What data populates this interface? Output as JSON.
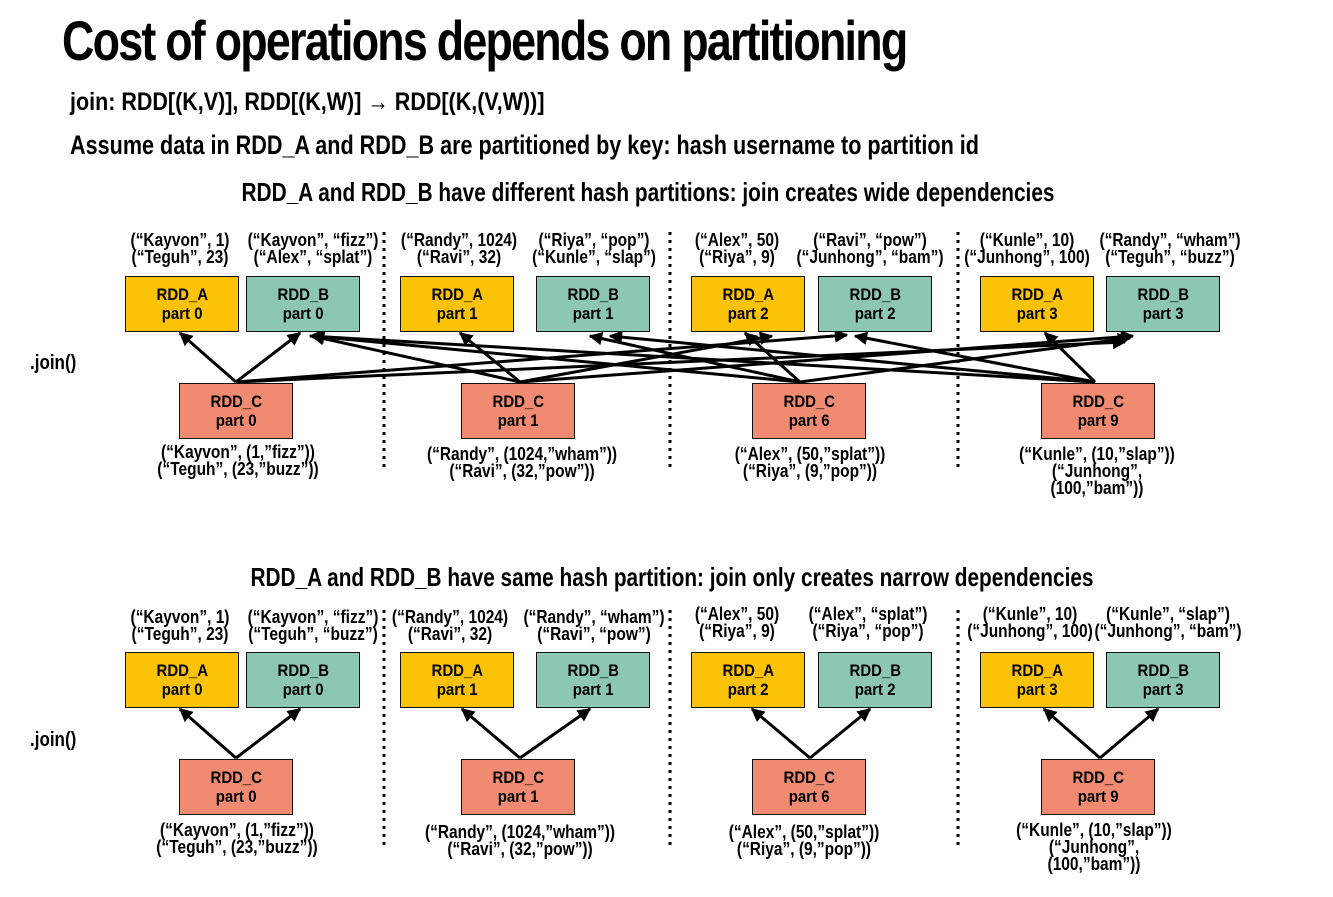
{
  "title": "Cost of operations depends on partitioning",
  "join_signature": "join:  RDD[(K,V)], RDD[(K,W)] → RDD[(K,(V,W))]",
  "assumption": "Assume data in RDD_A and RDD_B are partitioned by key: hash username to partition id",
  "top": {
    "heading": "RDD_A and RDD_B have different hash partitions: join creates wide dependencies",
    "join_label": ".join()",
    "groups": [
      {
        "a": {
          "name": "RDD_A",
          "part": "part 0",
          "data": "(“Kayvon”, 1)\n(“Teguh”, 23)"
        },
        "b": {
          "name": "RDD_B",
          "part": "part 0",
          "data": "(“Kayvon”, “fizz”)\n(“Alex”, “splat”)"
        },
        "c": {
          "name": "RDD_C",
          "part": "part 0",
          "data": "(“Kayvon”, (1,”fizz”))\n(“Teguh”, (23,”buzz”))"
        }
      },
      {
        "a": {
          "name": "RDD_A",
          "part": "part 1",
          "data": "(“Randy”, 1024)\n(“Ravi”, 32)"
        },
        "b": {
          "name": "RDD_B",
          "part": "part 1",
          "data": "(“Riya”, “pop”)\n(“Kunle”, “slap”)"
        },
        "c": {
          "name": "RDD_C",
          "part": "part 1",
          "data": "(“Randy”, (1024,”wham”))\n(“Ravi”, (32,”pow”))"
        }
      },
      {
        "a": {
          "name": "RDD_A",
          "part": "part 2",
          "data": "(“Alex”, 50)\n(“Riya”, 9)"
        },
        "b": {
          "name": "RDD_B",
          "part": "part 2",
          "data": "(“Ravi”, “pow”)\n(“Junhong”, “bam”)"
        },
        "c": {
          "name": "RDD_C",
          "part": "part 6",
          "data": "(“Alex”, (50,”splat”))\n(“Riya”, (9,”pop”))"
        }
      },
      {
        "a": {
          "name": "RDD_A",
          "part": "part 3",
          "data": "(“Kunle”, 10)\n(“Junhong”, 100)"
        },
        "b": {
          "name": "RDD_B",
          "part": "part 3",
          "data": "(“Randy”, “wham”)\n(“Teguh”, “buzz”)"
        },
        "c": {
          "name": "RDD_C",
          "part": "part 9",
          "data": "(“Kunle”, (10,”slap”))\n(“Junhong”,\n(100,”bam”))"
        }
      }
    ]
  },
  "bottom": {
    "heading": "RDD_A and RDD_B have same hash partition: join only creates narrow dependencies",
    "join_label": ".join()",
    "groups": [
      {
        "a": {
          "name": "RDD_A",
          "part": "part 0",
          "data": "(“Kayvon”, 1)\n(“Teguh”, 23)"
        },
        "b": {
          "name": "RDD_B",
          "part": "part 0",
          "data": "(“Kayvon”, “fizz”)\n(“Teguh”, “buzz”)"
        },
        "c": {
          "name": "RDD_C",
          "part": "part 0",
          "data": "(“Kayvon”, (1,”fizz”))\n(“Teguh”, (23,”buzz”))"
        }
      },
      {
        "a": {
          "name": "RDD_A",
          "part": "part 1",
          "data": "(“Randy”, 1024)\n(“Ravi”, 32)"
        },
        "b": {
          "name": "RDD_B",
          "part": "part 1",
          "data": "(“Randy”, “wham”)\n(“Ravi”, “pow”)"
        },
        "c": {
          "name": "RDD_C",
          "part": "part 1",
          "data": "(“Randy”, (1024,”wham”))\n(“Ravi”, (32,”pow”))"
        }
      },
      {
        "a": {
          "name": "RDD_A",
          "part": "part 2",
          "data": "(“Alex”, 50)\n(“Riya”, 9)"
        },
        "b": {
          "name": "RDD_B",
          "part": "part 2",
          "data": "(“Alex”, “splat”)\n(“Riya”, “pop”)"
        },
        "c": {
          "name": "RDD_C",
          "part": "part 6",
          "data": "(“Alex”, (50,”splat”))\n(“Riya”, (9,”pop”))"
        }
      },
      {
        "a": {
          "name": "RDD_A",
          "part": "part 3",
          "data": "(“Kunle”, 10)\n(“Junhong”, 100)"
        },
        "b": {
          "name": "RDD_B",
          "part": "part 3",
          "data": "(“Kunle”, “slap”)\n(“Junhong”, “bam”)"
        },
        "c": {
          "name": "RDD_C",
          "part": "part 9",
          "data": "(“Kunle”, (10,”slap”))\n(“Junhong”,\n(100,”bam”))"
        }
      }
    ]
  },
  "colors": {
    "rdd_a": "#fcc205",
    "rdd_b": "#8bc7b3",
    "rdd_c": "#f08b72",
    "arrow": "#000000"
  }
}
